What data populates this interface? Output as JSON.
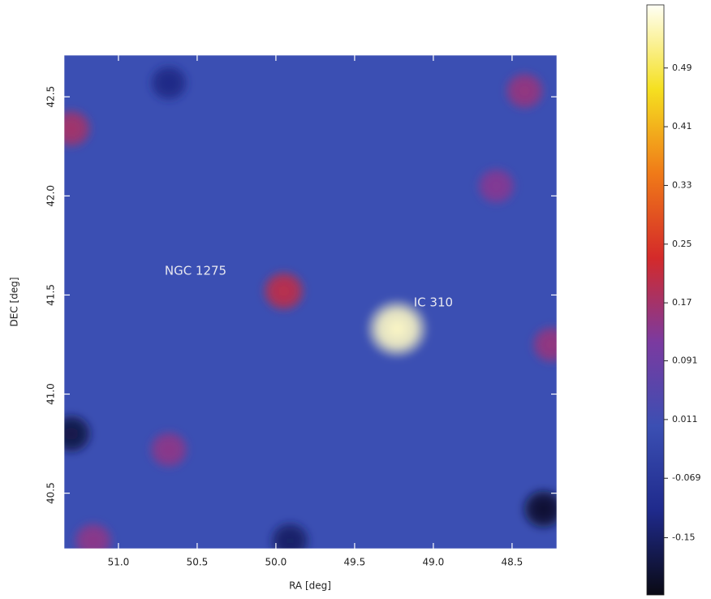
{
  "chart_data": {
    "type": "skymap",
    "xlabel": "RA [deg]",
    "ylabel": "DEC [deg]",
    "xlim": [
      51.345,
      48.216
    ],
    "ylim": [
      40.22,
      42.71
    ],
    "xticks": [
      {
        "value": 51,
        "label": "51.0"
      },
      50.5,
      {
        "value": 50,
        "label": "50.0"
      },
      49.5,
      {
        "value": 49,
        "label": "49.0"
      },
      48.5
    ],
    "yticks": [
      40.5,
      {
        "value": 41,
        "label": "41.0"
      },
      41.5,
      {
        "value": 42,
        "label": "42.0"
      },
      42.5
    ],
    "background_color": "#3b4fb3",
    "colormap": [
      "#0a0a14",
      "#1f2a8c",
      "#3b4fb3",
      "#7b3aa0",
      "#d42a2a",
      "#f07a18",
      "#f5e020",
      "#fffff5"
    ],
    "clim": [
      -0.228,
      0.576
    ],
    "cticks": [
      -0.15,
      -0.069,
      0.011,
      0.091,
      0.17,
      0.25,
      0.33,
      0.41,
      0.49
    ],
    "sources": [
      {
        "ra": 49.95,
        "dec": 41.52,
        "value": 0.2
      },
      {
        "ra": 49.23,
        "dec": 41.33,
        "value": 0.55
      },
      {
        "ra": 51.3,
        "dec": 42.34,
        "value": 0.17
      },
      {
        "ra": 48.42,
        "dec": 42.53,
        "value": 0.15
      },
      {
        "ra": 48.25,
        "dec": 41.25,
        "value": 0.15
      },
      {
        "ra": 50.68,
        "dec": 40.72,
        "value": 0.14
      },
      {
        "ra": 51.16,
        "dec": 40.26,
        "value": 0.14
      },
      {
        "ra": 48.6,
        "dec": 42.05,
        "value": 0.13
      },
      {
        "ra": 48.3,
        "dec": 40.42,
        "value": -0.2
      },
      {
        "ra": 51.3,
        "dec": 40.8,
        "value": -0.18
      },
      {
        "ra": 50.68,
        "dec": 42.57,
        "value": -0.12
      },
      {
        "ra": 49.91,
        "dec": 40.26,
        "value": -0.15
      }
    ],
    "annotations": [
      {
        "text": "NGC 1275",
        "ra": 50.51,
        "dec": 41.62
      },
      {
        "text": "IC 310",
        "ra": 49.0,
        "dec": 41.46
      }
    ]
  }
}
